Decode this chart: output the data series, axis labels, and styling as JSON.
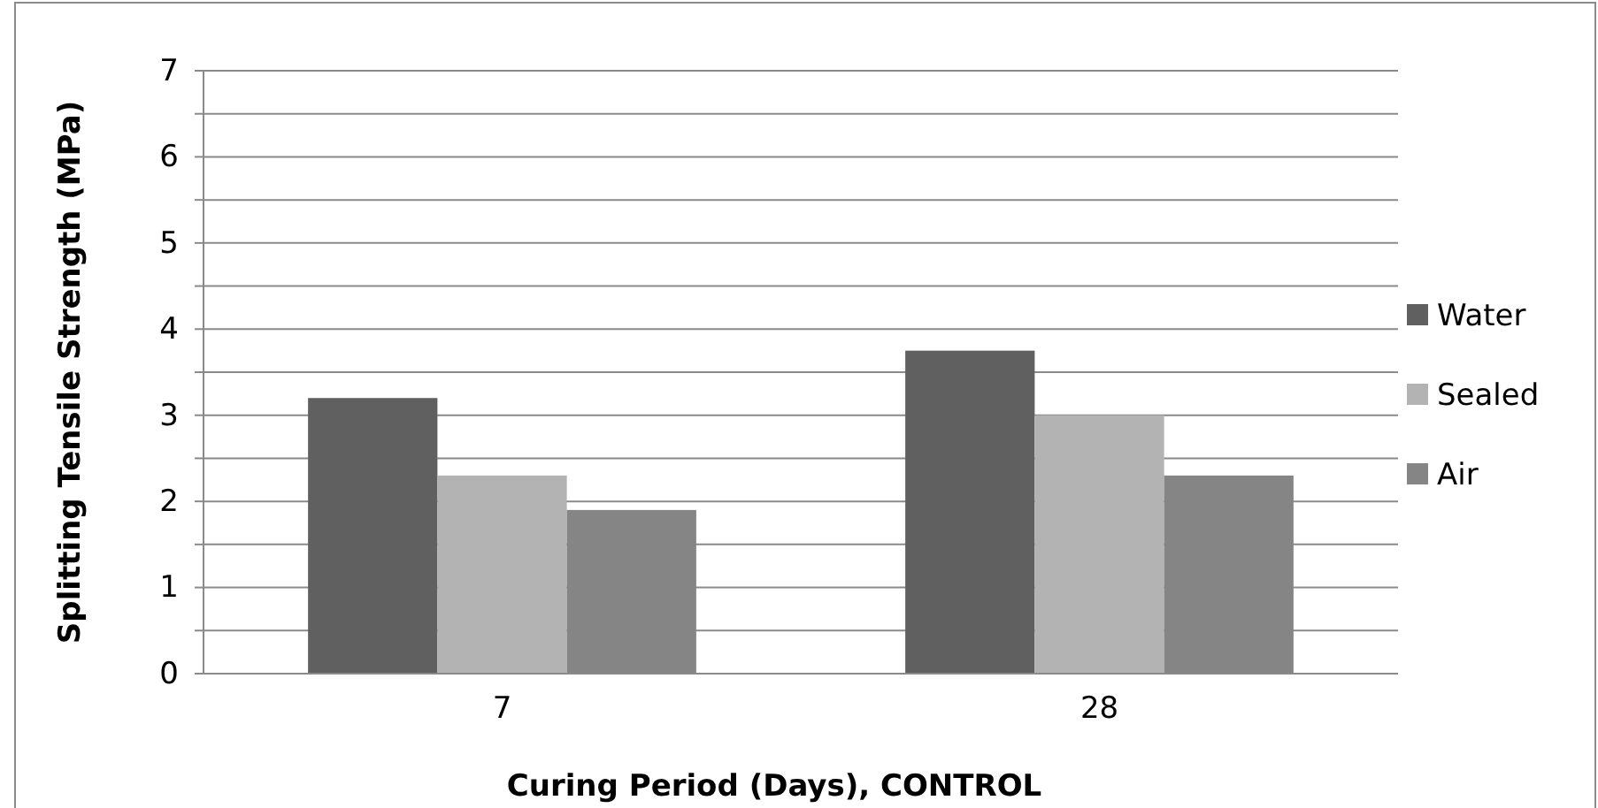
{
  "chart_data": {
    "type": "bar",
    "xlabel": "Curing Period (Days), CONTROL",
    "ylabel": "Splitting Tensile Strength (MPa)",
    "categories": [
      "7",
      "28"
    ],
    "series": [
      {
        "name": "Water",
        "color": "#606060",
        "values": [
          3.2,
          3.75
        ]
      },
      {
        "name": "Sealed",
        "color": "#b3b3b3",
        "values": [
          2.3,
          3.0
        ]
      },
      {
        "name": "Air",
        "color": "#858585",
        "values": [
          1.9,
          2.3
        ]
      }
    ],
    "ylim": [
      0,
      7
    ],
    "yticks": [
      0,
      {
        "value": 0.5,
        "label": null
      },
      1,
      {
        "value": 1.5,
        "label": null
      },
      2,
      {
        "value": 2.5,
        "label": null
      },
      3,
      {
        "value": 3.5,
        "label": null
      },
      4,
      {
        "value": 4.5,
        "label": null
      },
      5,
      {
        "value": 5.5,
        "label": null
      },
      6,
      {
        "value": 6.5,
        "label": null
      },
      7
    ],
    "grid": "y",
    "legend": "right"
  }
}
